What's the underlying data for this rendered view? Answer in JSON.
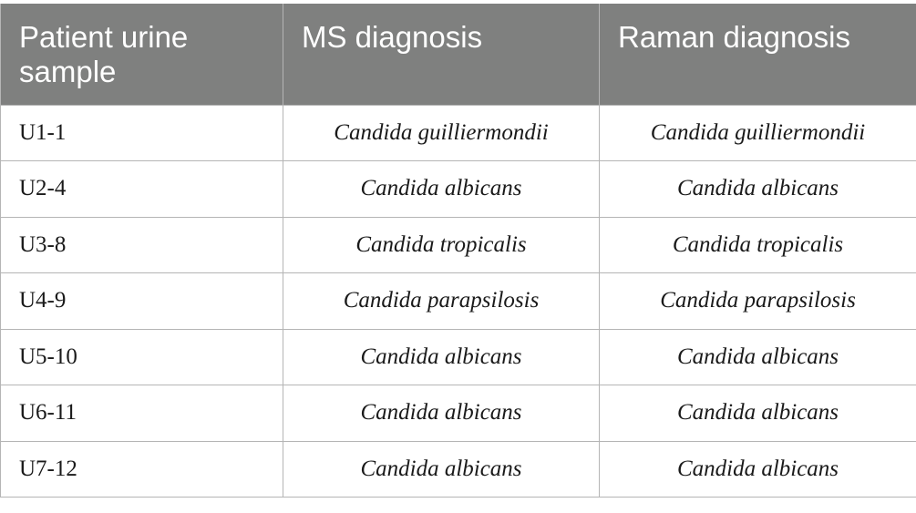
{
  "table": {
    "headers": [
      "Patient urine sample",
      "MS diagnosis",
      "Raman diagnosis"
    ],
    "rows": [
      {
        "sample": "U1-1",
        "ms": "Candida guilliermondii",
        "raman": "Candida guilliermondii"
      },
      {
        "sample": "U2-4",
        "ms": "Candida albicans",
        "raman": "Candida albicans"
      },
      {
        "sample": "U3-8",
        "ms": "Candida tropicalis",
        "raman": "Candida tropicalis"
      },
      {
        "sample": "U4-9",
        "ms": "Candida parapsilosis",
        "raman": "Candida parapsilosis"
      },
      {
        "sample": "U5-10",
        "ms": "Candida albicans",
        "raman": "Candida albicans"
      },
      {
        "sample": "U6-11",
        "ms": "Candida albicans",
        "raman": "Candida albicans"
      },
      {
        "sample": "U7-12",
        "ms": "Candida albicans",
        "raman": "Candida albicans"
      }
    ]
  }
}
